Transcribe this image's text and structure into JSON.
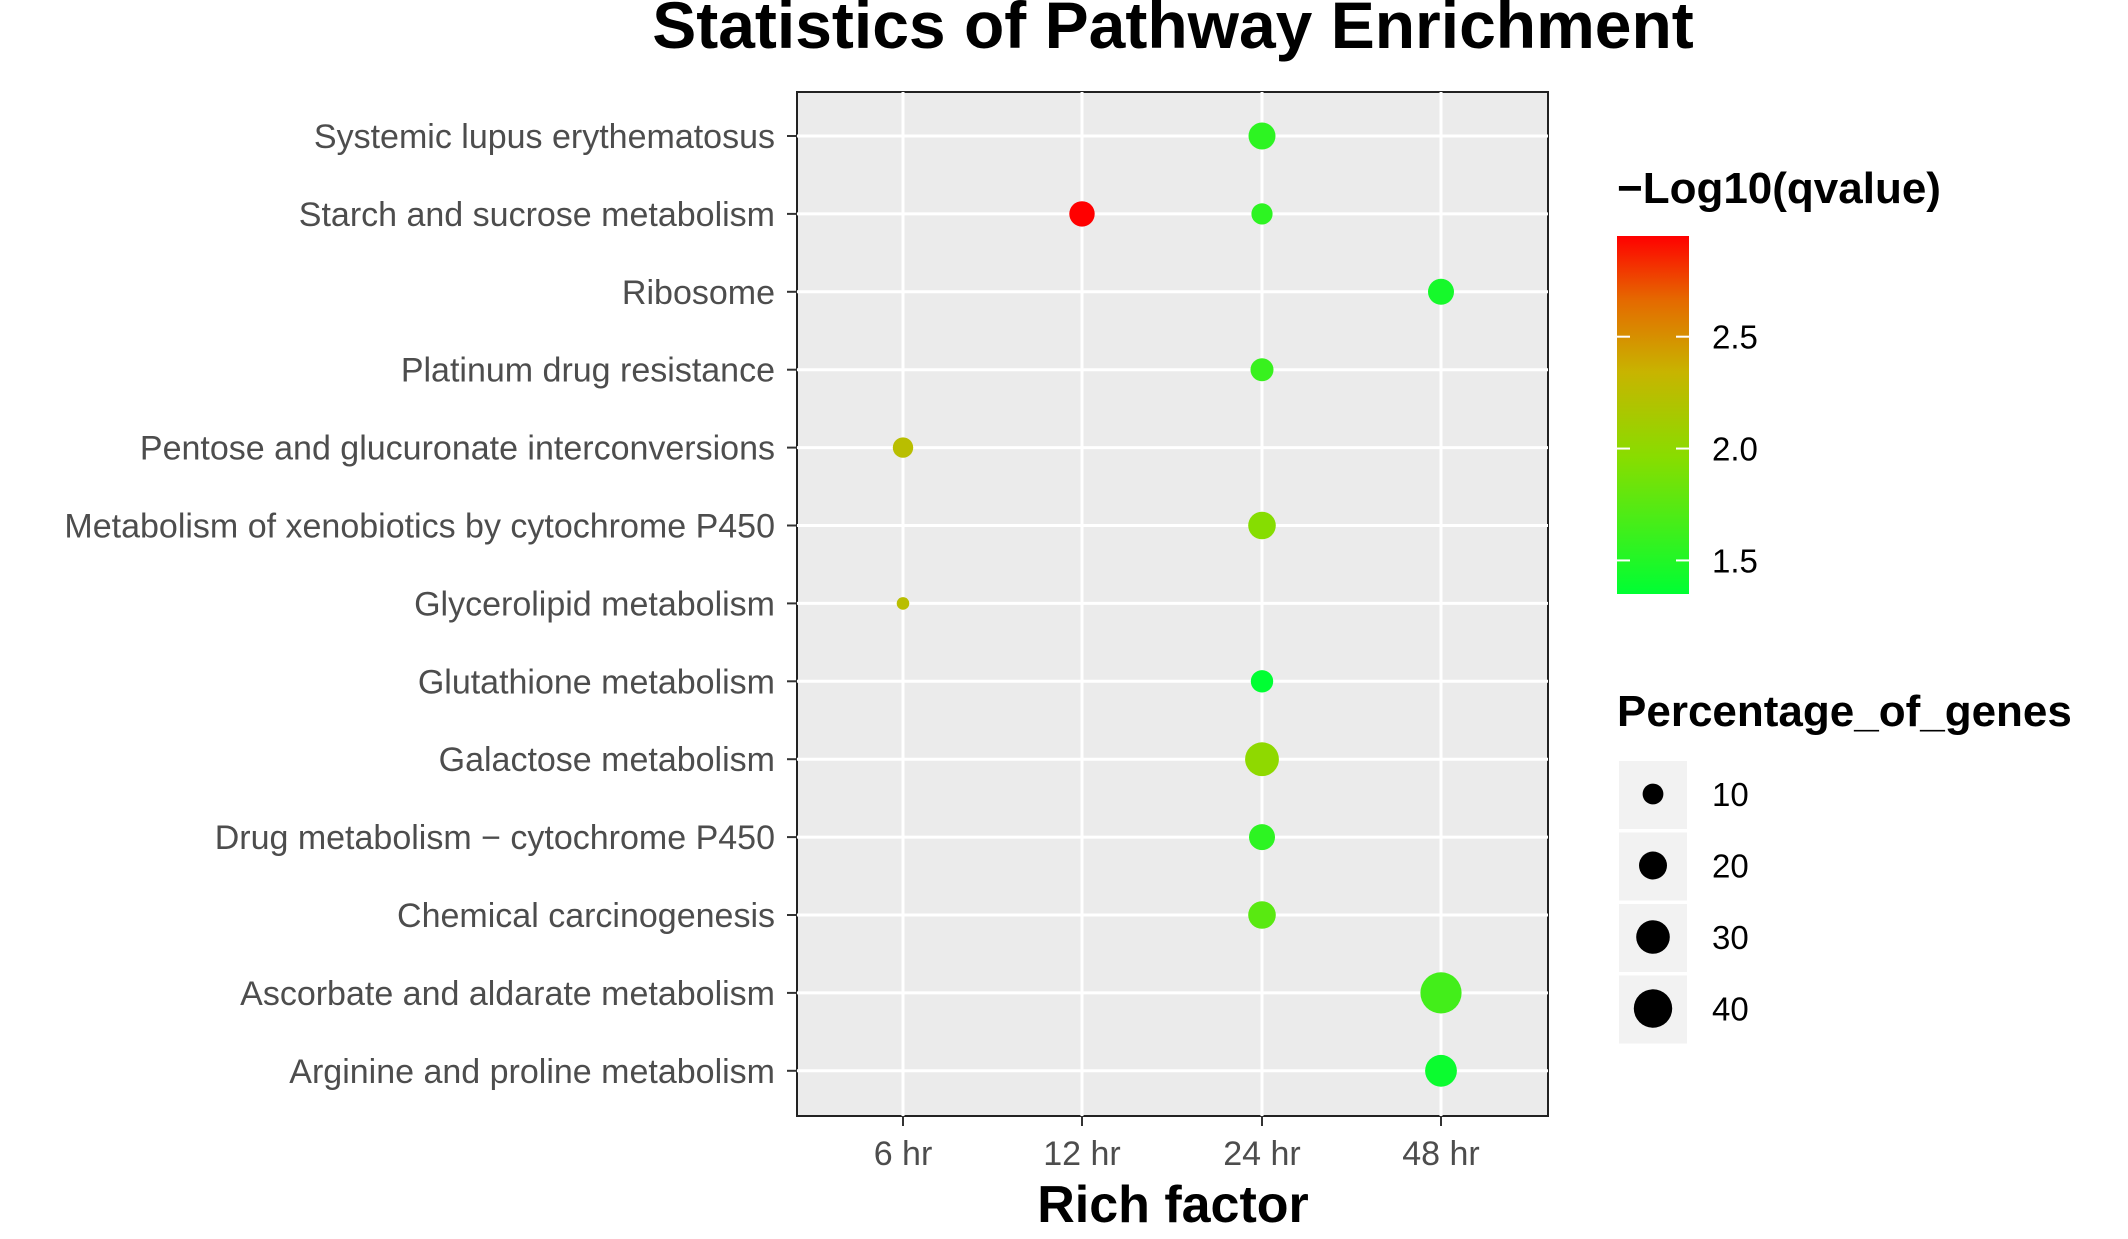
{
  "chart_data": {
    "type": "scatter",
    "title": "Statistics of Pathway Enrichment",
    "xlabel": "Rich factor",
    "ylabel": "",
    "x_categories": [
      "6 hr",
      "12 hr",
      "24 hr",
      "48 hr"
    ],
    "y_categories": [
      "Systemic lupus erythematosus",
      "Starch and sucrose metabolism",
      "Ribosome",
      "Platinum drug resistance",
      "Pentose and glucuronate interconversions",
      "Metabolism of xenobiotics by cytochrome P450",
      "Glycerolipid metabolism",
      "Glutathione metabolism",
      "Galactose metabolism",
      "Drug metabolism − cytochrome P450",
      "Chemical carcinogenesis",
      "Ascorbate and aldarate metabolism",
      "Arginine and proline metabolism"
    ],
    "points": [
      {
        "y": "Systemic lupus erythematosus",
        "x": "24 hr",
        "qvalue_neglog10": 1.55,
        "percentage_of_genes": 25
      },
      {
        "y": "Starch and sucrose metabolism",
        "x": "12 hr",
        "qvalue_neglog10": 2.95,
        "percentage_of_genes": 22
      },
      {
        "y": "Starch and sucrose metabolism",
        "x": "24 hr",
        "qvalue_neglog10": 1.55,
        "percentage_of_genes": 15
      },
      {
        "y": "Ribosome",
        "x": "48 hr",
        "qvalue_neglog10": 1.45,
        "percentage_of_genes": 23
      },
      {
        "y": "Platinum drug resistance",
        "x": "24 hr",
        "qvalue_neglog10": 1.6,
        "percentage_of_genes": 18
      },
      {
        "y": "Pentose and glucuronate interconversions",
        "x": "6 hr",
        "qvalue_neglog10": 2.25,
        "percentage_of_genes": 14
      },
      {
        "y": "Metabolism of xenobiotics by cytochrome P450",
        "x": "24 hr",
        "qvalue_neglog10": 1.95,
        "percentage_of_genes": 26
      },
      {
        "y": "Glycerolipid metabolism",
        "x": "6 hr",
        "qvalue_neglog10": 2.25,
        "percentage_of_genes": 5
      },
      {
        "y": "Glutathione metabolism",
        "x": "24 hr",
        "qvalue_neglog10": 1.35,
        "percentage_of_genes": 17
      },
      {
        "y": "Galactose metabolism",
        "x": "24 hr",
        "qvalue_neglog10": 2.0,
        "percentage_of_genes": 40
      },
      {
        "y": "Drug metabolism − cytochrome P450",
        "x": "24 hr",
        "qvalue_neglog10": 1.55,
        "percentage_of_genes": 23
      },
      {
        "y": "Chemical carcinogenesis",
        "x": "24 hr",
        "qvalue_neglog10": 1.75,
        "percentage_of_genes": 26
      },
      {
        "y": "Ascorbate and aldarate metabolism",
        "x": "48 hr",
        "qvalue_neglog10": 1.65,
        "percentage_of_genes": 60
      },
      {
        "y": "Arginine and proline metabolism",
        "x": "48 hr",
        "qvalue_neglog10": 1.4,
        "percentage_of_genes": 35
      }
    ],
    "color_legend": {
      "title": "−Log10(qvalue)",
      "ticks": [
        1.5,
        2.0,
        2.5
      ],
      "tick_labels": [
        "1.5",
        "2.0",
        "2.5"
      ],
      "range": [
        1.35,
        2.95
      ],
      "low_color": "#00ff33",
      "high_color": "#ff0000"
    },
    "size_legend": {
      "title": "Percentage_of_genes",
      "values": [
        10,
        20,
        30,
        40
      ],
      "labels": [
        "10",
        "20",
        "30",
        "40"
      ]
    },
    "grid": true,
    "legend_position": "right"
  }
}
